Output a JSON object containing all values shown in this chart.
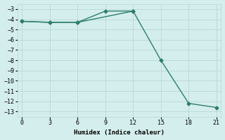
{
  "line1_x": [
    0,
    3,
    6,
    9,
    12
  ],
  "line1_y": [
    -4.2,
    -4.3,
    -4.3,
    -3.2,
    -3.2
  ],
  "line2_x": [
    0,
    3,
    6,
    12,
    15,
    18,
    21
  ],
  "line2_y": [
    -4.2,
    -4.3,
    -4.3,
    -3.2,
    -8.0,
    -12.2,
    -12.6
  ],
  "color": "#2e7d6e",
  "bg_color": "#d4eeed",
  "grid_color": "#b8d8d4",
  "xlabel": "Humidex (Indice chaleur)",
  "xlim": [
    -0.5,
    21.5
  ],
  "ylim": [
    -13.5,
    -2.5
  ],
  "xticks": [
    0,
    3,
    6,
    9,
    12,
    15,
    18,
    21
  ],
  "yticks": [
    -13,
    -12,
    -11,
    -10,
    -9,
    -8,
    -7,
    -6,
    -5,
    -4,
    -3
  ],
  "marker": "D",
  "markersize": 2.5,
  "linewidth": 1.0
}
